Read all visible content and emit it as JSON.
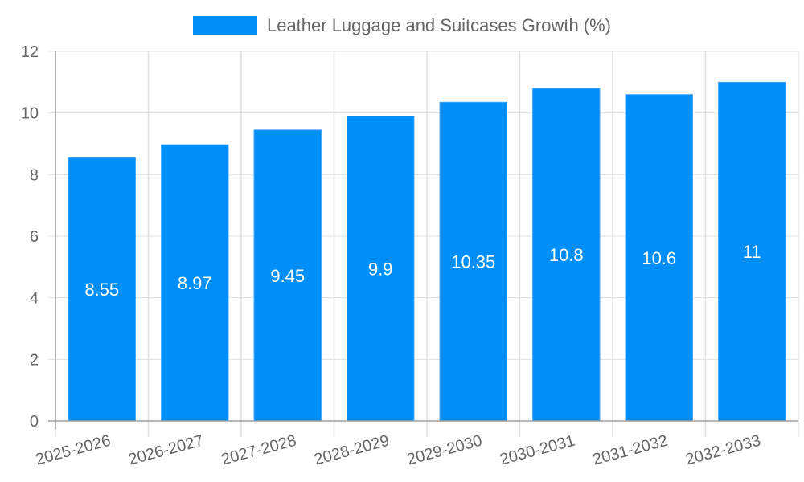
{
  "chart_data": {
    "type": "bar",
    "title": "",
    "legend": [
      "Leather Luggage and Suitcases Growth (%)"
    ],
    "legend_position": "top",
    "categories": [
      "2025-2026",
      "2026-2027",
      "2027-2028",
      "2028-2029",
      "2029-2030",
      "2030-2031",
      "2031-2032",
      "2032-2033"
    ],
    "series": [
      {
        "name": "Leather Luggage and Suitcases Growth (%)",
        "values": [
          8.55,
          8.97,
          9.45,
          9.9,
          10.35,
          10.8,
          10.6,
          11
        ],
        "color": "#008ff8"
      }
    ],
    "data_labels": [
      "8.55",
      "8.97",
      "9.45",
      "9.9",
      "10.35",
      "10.8",
      "10.6",
      "11"
    ],
    "xlabel": "",
    "ylabel": "",
    "ylim": [
      0,
      12
    ],
    "yticks": [
      0,
      2,
      4,
      6,
      8,
      10,
      12
    ],
    "grid": true
  },
  "legend": {
    "label": "Leather Luggage and Suitcases Growth (%)",
    "color": "#008ff8"
  }
}
